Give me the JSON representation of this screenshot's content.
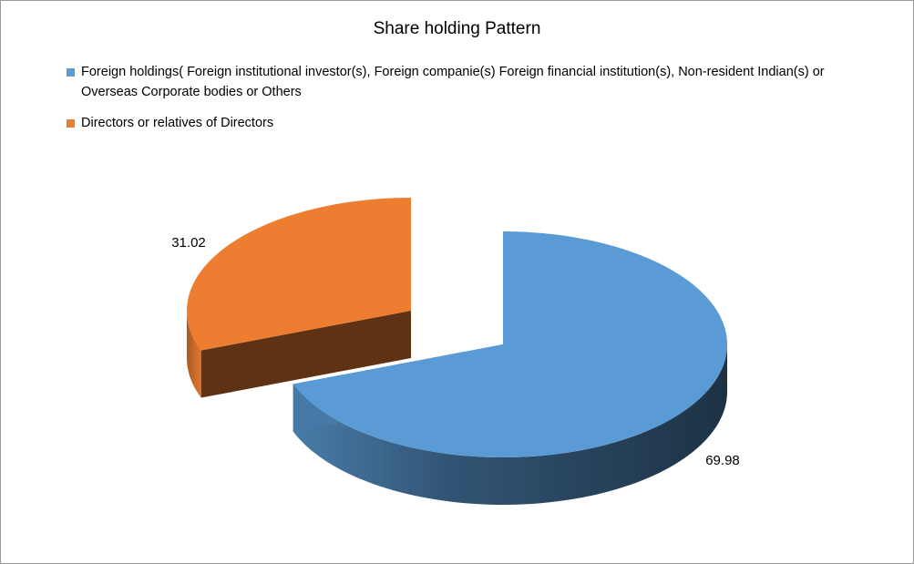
{
  "chart_data": {
    "type": "pie",
    "title": "Share holding Pattern",
    "categories": [
      "Foreign holdings( Foreign institutional investor(s), Foreign companie(s) Foreign financial institution(s), Non-resident Indian(s) or Overseas Corporate bodies or Others",
      "Directors or relatives of Directors"
    ],
    "values": [
      69.98,
      31.02
    ],
    "data_labels": [
      "69.98",
      "31.02"
    ],
    "colors": [
      "#5B9BD5",
      "#ED7D31"
    ],
    "legend_position": "top",
    "style": "3d-exploded"
  }
}
